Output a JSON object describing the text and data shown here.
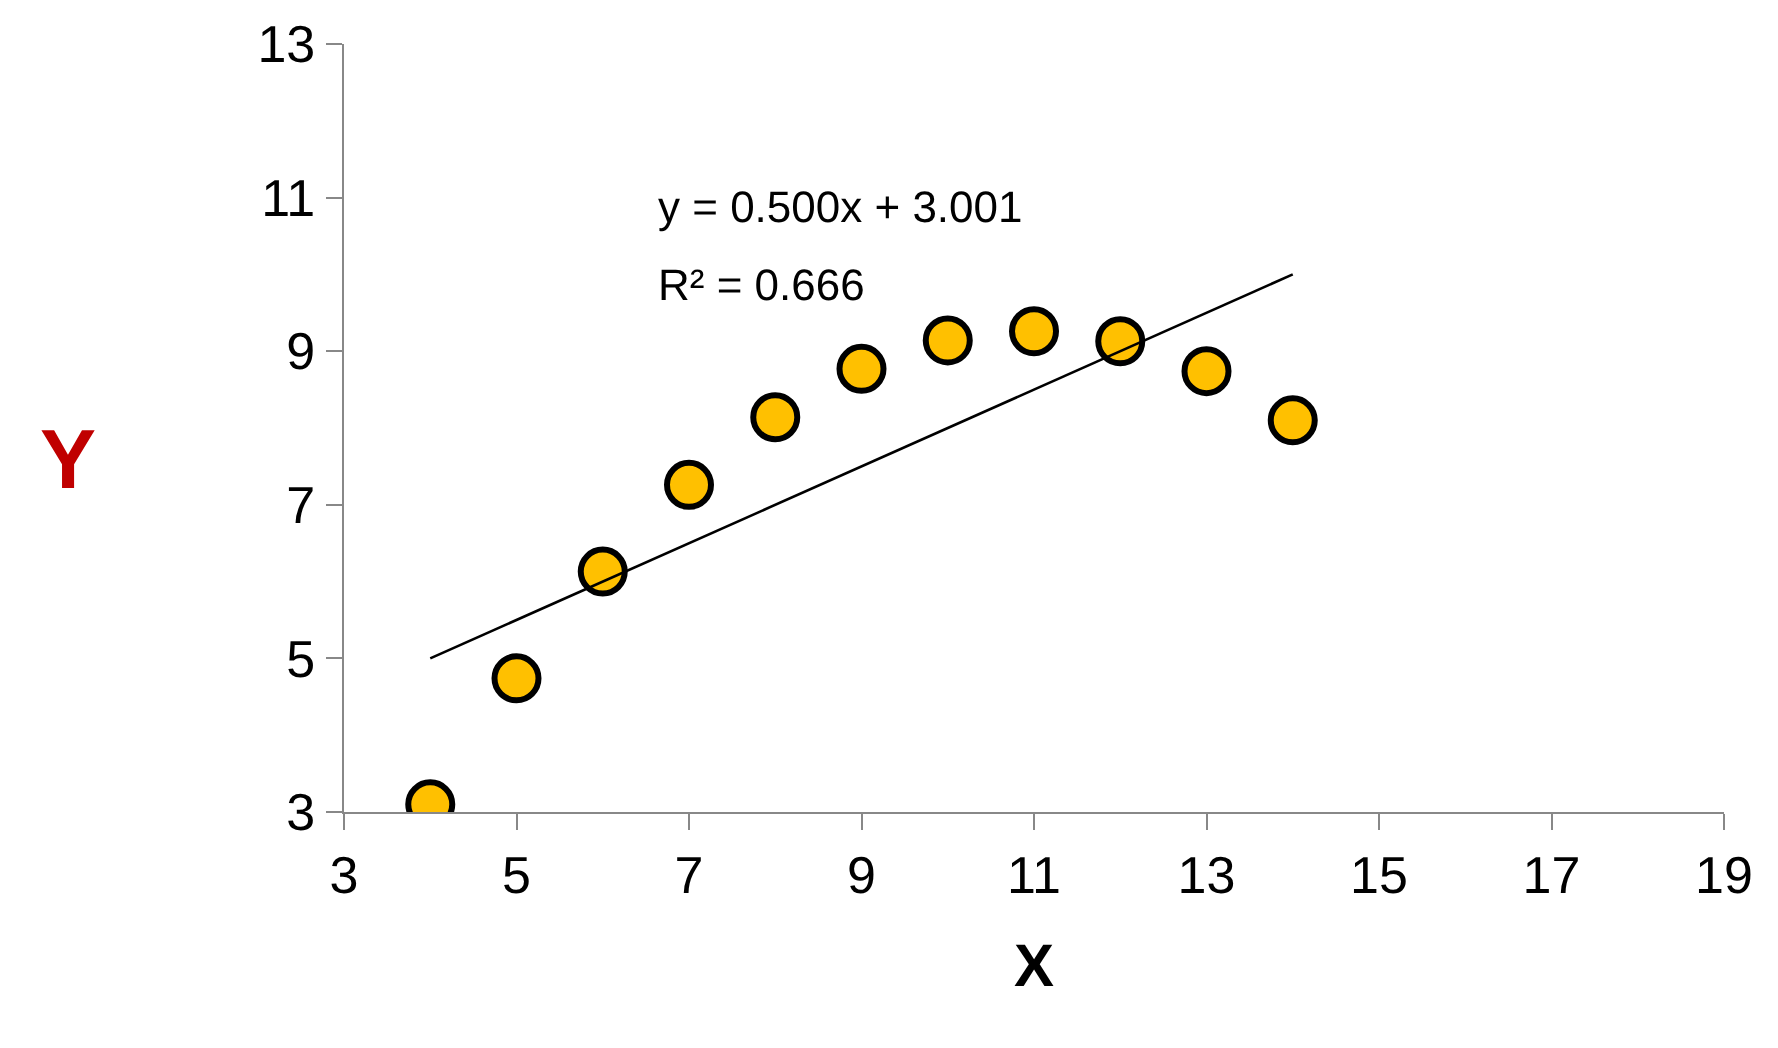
{
  "chart_data": {
    "type": "scatter",
    "xlabel": "X",
    "ylabel": "Y",
    "xlim": [
      3,
      19
    ],
    "xticks": [
      3,
      5,
      7,
      9,
      11,
      13,
      15,
      17,
      19
    ],
    "ylim": [
      3,
      13
    ],
    "yticks": [
      3,
      5,
      7,
      9,
      11,
      13
    ],
    "grid": false,
    "legend": false,
    "annotations": [
      "y = 0.500x + 3.001",
      "R² = 0.666"
    ],
    "series": [
      {
        "marker": "circle",
        "color": "#ffc000",
        "x": [
          4,
          5,
          6,
          7,
          8,
          9,
          10,
          11,
          12,
          13,
          14
        ],
        "values": [
          3.1,
          4.74,
          6.13,
          7.26,
          8.14,
          8.77,
          9.14,
          9.26,
          9.13,
          8.74,
          8.1
        ]
      },
      {
        "type": "line",
        "marker": "none",
        "color": "#000000",
        "x": [
          4,
          14
        ],
        "values": [
          5,
          10
        ]
      }
    ]
  }
}
